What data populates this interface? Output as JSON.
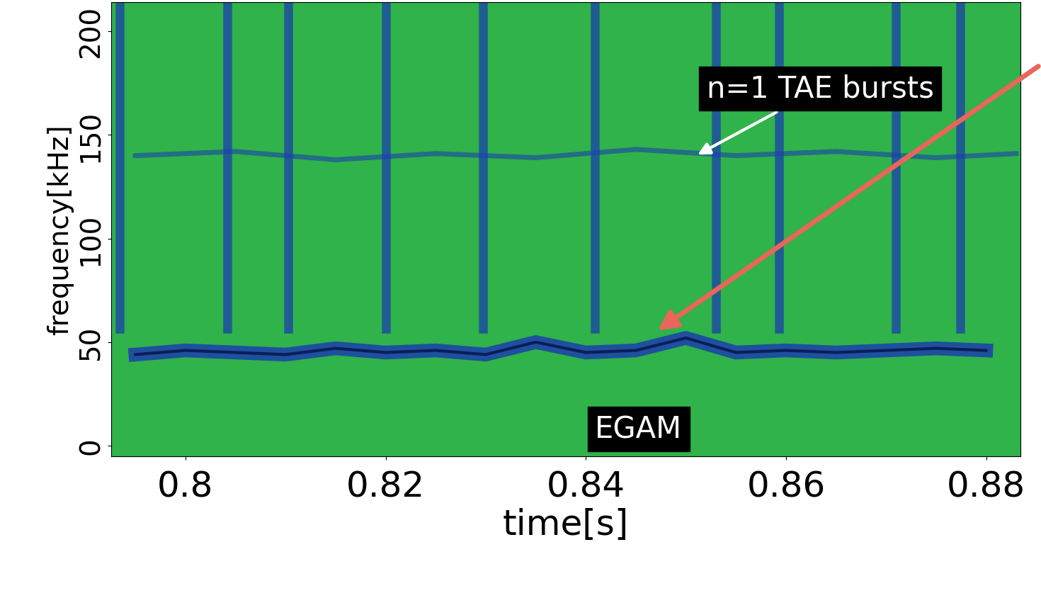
{
  "chart_data": {
    "type": "spectrogram",
    "xlabel": "time[s]",
    "ylabel": "frequency[kHz]",
    "xlim": [
      0.7926,
      0.8834
    ],
    "ylim": [
      -5,
      214
    ],
    "xticks": [
      0.8,
      0.82,
      0.84,
      0.86,
      0.88
    ],
    "yticks": [
      0,
      50,
      100,
      150,
      200
    ],
    "color": "#2fb34a",
    "burst_color": "#1c3fae",
    "burst_times": [
      0.7934,
      0.8042,
      0.8103,
      0.82,
      0.8297,
      0.8409,
      0.853,
      0.8593,
      0.871,
      0.8774
    ],
    "egam": {
      "x": [
        0.795,
        0.8,
        0.805,
        0.81,
        0.815,
        0.82,
        0.825,
        0.83,
        0.835,
        0.84,
        0.845,
        0.85,
        0.855,
        0.86,
        0.865,
        0.87,
        0.875,
        0.88
      ],
      "values": [
        44,
        46,
        45,
        44,
        47,
        45,
        46,
        44,
        50,
        45,
        46,
        52,
        45,
        46,
        45,
        46,
        47,
        46
      ]
    },
    "tae": {
      "x": [
        0.795,
        0.805,
        0.815,
        0.825,
        0.835,
        0.845,
        0.855,
        0.865,
        0.875,
        0.883
      ],
      "values": [
        140,
        142,
        138,
        141,
        139,
        143,
        140,
        142,
        139,
        141
      ]
    },
    "annotations": [
      {
        "text": "n=1 TAE bursts",
        "x": 0.851,
        "y": 140
      },
      {
        "text": "EGAM"
      }
    ],
    "highlight": {
      "x": 0.847,
      "y": 55,
      "color": "#e8665a"
    }
  }
}
